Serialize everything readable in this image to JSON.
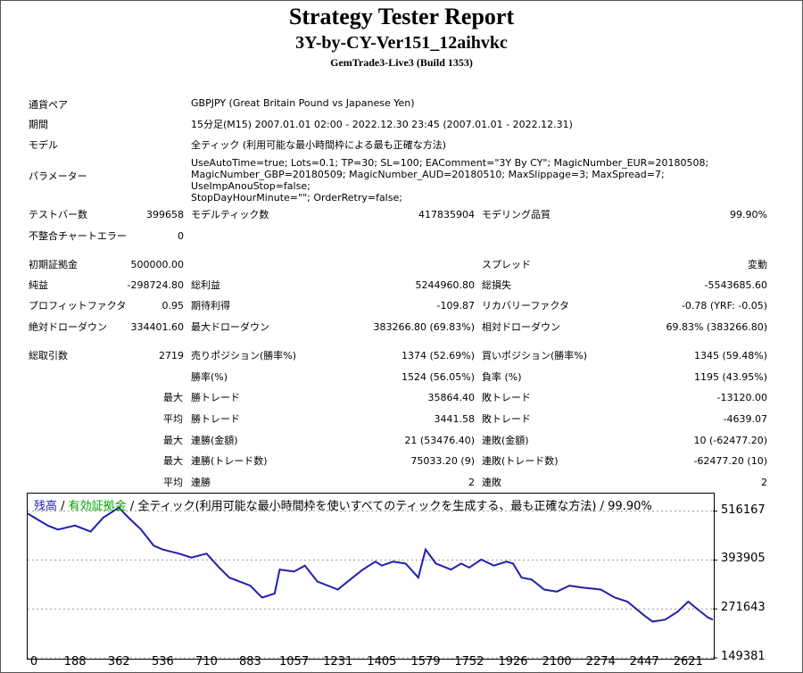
{
  "header": {
    "title": "Strategy Tester Report",
    "ea_name": "3Y-by-CY-Ver151_12aihvkc",
    "server": "GemTrade3-Live3 (Build 1353)"
  },
  "info": {
    "symbol_label": "通貨ペア",
    "symbol_value": "GBPJPY (Great Britain Pound vs Japanese Yen)",
    "period_label": "期間",
    "period_value": "15分足(M15) 2007.01.01 02:00 - 2022.12.30 23:45 (2007.01.01 - 2022.12.31)",
    "model_label": "モデル",
    "model_value": "全ティック (利用可能な最小時間枠による最も正確な方法)",
    "params_label": "パラメーター",
    "params_lines": [
      "UseAutoTime=true; Lots=0.1; TP=30; SL=100; EAComment=\"3Y By CY\"; MagicNumber_EUR=20180508;",
      "MagicNumber_GBP=20180509; MagicNumber_AUD=20180510; MaxSlippage=3; MaxSpread=7; UseImpAnouStop=false;",
      "StopDayHourMinute=\"\"; OrderRetry=false;"
    ]
  },
  "stats": {
    "bars_label": "テストバー数",
    "bars_value": "399658",
    "ticks_label": "モデルティック数",
    "ticks_value": "417835904",
    "quality_label": "モデリング品質",
    "quality_value": "99.90%",
    "errors_label": "不整合チャートエラー",
    "errors_value": "0",
    "deposit_label": "初期証拠金",
    "deposit_value": "500000.00",
    "spread_label": "スプレッド",
    "spread_value": "変動",
    "netprofit_label": "純益",
    "netprofit_value": "-298724.80",
    "grossprofit_label": "総利益",
    "grossprofit_value": "5244960.80",
    "grossloss_label": "総損失",
    "grossloss_value": "-5543685.60",
    "pf_label": "プロフィットファクタ",
    "pf_value": "0.95",
    "payoff_label": "期待利得",
    "payoff_value": "-109.87",
    "rf_label": "リカバリーファクタ",
    "rf_value": "-0.78 (YRF: -0.05)",
    "absdd_label": "絶対ドローダウン",
    "absdd_value": "334401.60",
    "maxdd_label": "最大ドローダウン",
    "maxdd_value": "383266.80 (69.83%)",
    "reldd_label": "相対ドローダウン",
    "reldd_value": "69.83% (383266.80)",
    "trades_label": "総取引数",
    "trades_value": "2719",
    "short_label": "売りポジション(勝率%)",
    "short_value": "1374 (52.69%)",
    "long_label": "買いポジション(勝率%)",
    "long_value": "1345 (59.48%)",
    "winrate_label": "勝率(%)",
    "winrate_value": "1524 (56.05%)",
    "lossrate_label": "負率 (%)",
    "lossrate_value": "1195 (43.95%)",
    "max_label": "最大",
    "avg_label": "平均",
    "largest_win_label": "勝トレード",
    "largest_win_value": "35864.40",
    "largest_loss_label": "敗トレード",
    "largest_loss_value": "-13120.00",
    "avg_win_label": "勝トレード",
    "avg_win_value": "3441.58",
    "avg_loss_label": "敗トレード",
    "avg_loss_value": "-4639.07",
    "consec_wins_label": "連勝(金額)",
    "consec_wins_value": "21 (53476.40)",
    "consec_losses_label": "連敗(金額)",
    "consec_losses_value": "10 (-62477.20)",
    "consec_profit_label": "連勝(トレード数)",
    "consec_profit_value": "75033.20 (9)",
    "consec_loss_label": "連敗(トレード数)",
    "consec_loss_value": "-62477.20 (10)",
    "avg_consec_wins_label": "連勝",
    "avg_consec_wins_value": "2",
    "avg_consec_losses_label": "連敗",
    "avg_consec_losses_value": "2"
  },
  "chart_legend": {
    "balance": "残高",
    "sep1": " / ",
    "equity": "有効証拠金",
    "sep2": " / ",
    "rest": "全ティック(利用可能な最小時間枠を使いすべてのティックを生成する、最も正確な方法) / 99.90%"
  },
  "chart_data": {
    "type": "line",
    "series": [
      {
        "name": "残高",
        "color": "#1f1fb0",
        "x": [
          0,
          40,
          80,
          120,
          188,
          250,
          300,
          362,
          400,
          450,
          500,
          536,
          600,
          650,
          710,
          760,
          800,
          883,
          930,
          980,
          1000,
          1057,
          1100,
          1150,
          1231,
          1280,
          1330,
          1380,
          1405,
          1450,
          1500,
          1550,
          1579,
          1620,
          1680,
          1720,
          1752,
          1800,
          1850,
          1900,
          1926,
          1960,
          2000,
          2050,
          2100,
          2150,
          2200,
          2274,
          2330,
          2380,
          2447,
          2480,
          2530,
          2580,
          2621,
          2660,
          2700,
          2719
        ],
        "y": [
          510000,
          495000,
          480000,
          470000,
          480000,
          465000,
          500000,
          525000,
          500000,
          470000,
          430000,
          420000,
          410000,
          400000,
          410000,
          375000,
          350000,
          330000,
          300000,
          310000,
          370000,
          365000,
          380000,
          340000,
          320000,
          345000,
          370000,
          390000,
          380000,
          390000,
          385000,
          350000,
          420000,
          385000,
          370000,
          385000,
          375000,
          395000,
          380000,
          390000,
          385000,
          350000,
          345000,
          320000,
          315000,
          330000,
          325000,
          320000,
          300000,
          290000,
          255000,
          240000,
          245000,
          265000,
          290000,
          270000,
          250000,
          245000
        ]
      }
    ],
    "xlabel": "",
    "ylabel": "",
    "x_ticks": [
      0,
      188,
      362,
      536,
      710,
      883,
      1057,
      1231,
      1405,
      1579,
      1752,
      1926,
      2100,
      2274,
      2447,
      2621
    ],
    "y_ticks": [
      516167,
      393905,
      271643,
      149381
    ],
    "xlim": [
      0,
      2719
    ],
    "ylim": [
      149381,
      560000
    ],
    "grid": true
  }
}
